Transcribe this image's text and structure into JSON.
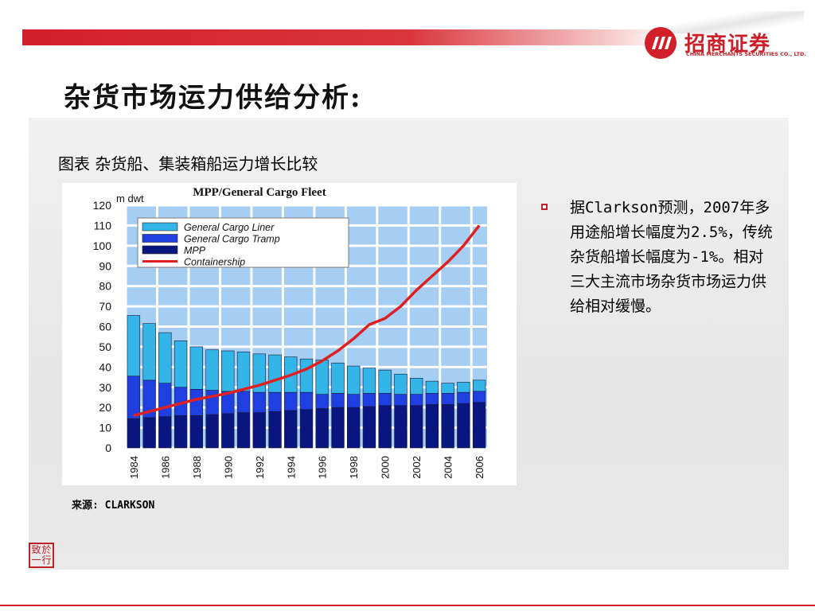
{
  "brand": {
    "name_cn": "招商证券",
    "name_en": "CHINA MERCHANTS SECURITIES CO., LTD.",
    "accent_color": "#d2202b",
    "seal_chars": [
      "致",
      "於",
      "一",
      "行"
    ]
  },
  "page": {
    "title": "杂货市场运力供给分析:",
    "figure_caption": "图表 杂货船、集装箱船运力增长比较",
    "source": "来源: CLARKSON"
  },
  "bullets": [
    {
      "text": "据Clarkson预测，2007年多用途船增长幅度为2.5%，传统杂货船增长幅度为-1%。相对三大主流市场杂货市场运力供给相对缓慢。"
    }
  ],
  "chart_data": {
    "type": "bar",
    "stacked": true,
    "title": "MPP/General Cargo Fleet",
    "ylabel": "m dwt",
    "ylim": [
      0,
      120
    ],
    "yticks": [
      0,
      10,
      20,
      30,
      40,
      50,
      60,
      70,
      80,
      90,
      100,
      110,
      120
    ],
    "xticks": [
      "1984",
      "1986",
      "1988",
      "1990",
      "1992",
      "1994",
      "1996",
      "1998",
      "2000",
      "2002",
      "2004",
      "2006"
    ],
    "categories": [
      1984,
      1985,
      1986,
      1987,
      1988,
      1989,
      1990,
      1991,
      1992,
      1993,
      1994,
      1995,
      1996,
      1997,
      1998,
      1999,
      2000,
      2001,
      2002,
      2003,
      2004,
      2005,
      2006
    ],
    "grid": true,
    "legend_position": "top-left",
    "background_color": "#a6cdf2",
    "series": [
      {
        "name": "General Cargo Liner",
        "color": "#33b5e8",
        "values": [
          30,
          28,
          25,
          23,
          21,
          20,
          20,
          19.5,
          19,
          18.5,
          17.5,
          16.5,
          17,
          15,
          14,
          12.5,
          11.5,
          10,
          8,
          6,
          5,
          5,
          5.5
        ]
      },
      {
        "name": "General Cargo Tramp",
        "color": "#1f3fe0",
        "values": [
          21,
          18.5,
          16.5,
          14,
          13,
          12,
          11,
          10.5,
          10,
          9.5,
          9,
          8.5,
          7,
          7,
          6.5,
          6.5,
          6,
          5.5,
          5.5,
          5.5,
          5.5,
          5.5,
          5.5
        ]
      },
      {
        "name": "MPP",
        "color": "#0a1680",
        "values": [
          14.5,
          15,
          15.5,
          16,
          16,
          16.5,
          17,
          17.5,
          17.5,
          18,
          18.5,
          19,
          19.5,
          20,
          20,
          20.5,
          21,
          21,
          21,
          21.5,
          21.5,
          22,
          22.5
        ]
      },
      {
        "name": "Containership",
        "type": "line",
        "color": "#e02020",
        "values": [
          16,
          18,
          20,
          22,
          24,
          25.5,
          27,
          29,
          31,
          33.5,
          36,
          39,
          43,
          48,
          54,
          61,
          64,
          70,
          78,
          85,
          92,
          100,
          110
        ]
      }
    ]
  }
}
